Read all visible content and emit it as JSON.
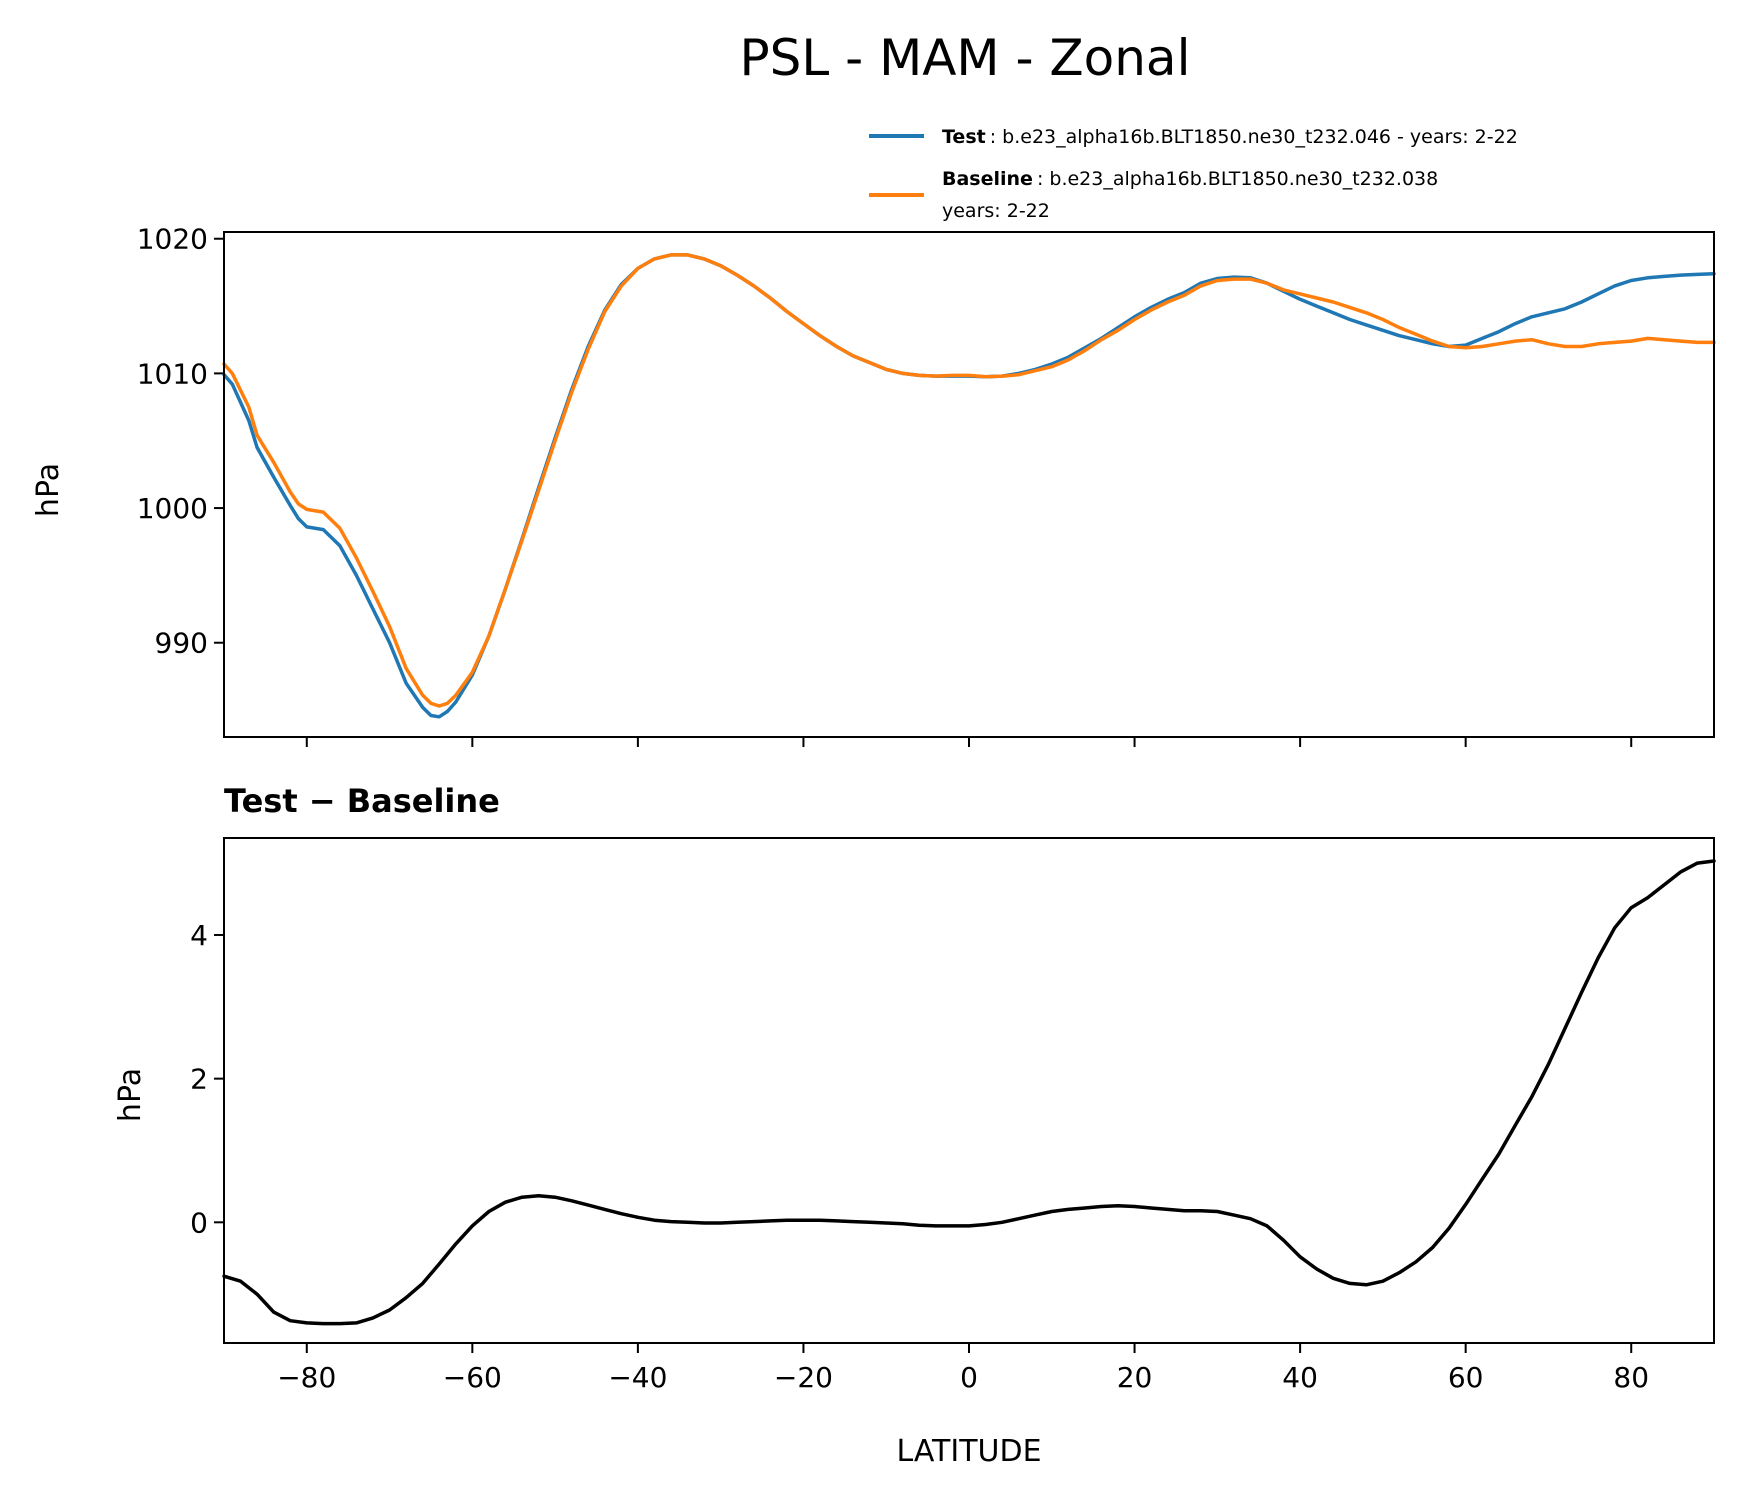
{
  "title": "PSL - MAM - Zonal",
  "legend": {
    "test_name": "Test",
    "test_text": ": b.e23_alpha16b.BLT1850.ne30_t232.046 - years: 2-22",
    "baseline_name": "Baseline",
    "baseline_text": ": b.e23_alpha16b.BLT1850.ne30_t232.038",
    "baseline_text2": "years: 2-22",
    "placement": "above top panel, right"
  },
  "chart_data": [
    {
      "type": "line",
      "title": "",
      "xlabel": "",
      "ylabel": "hPa",
      "xlim": [
        -90,
        90
      ],
      "ylim": [
        983,
        1020.5
      ],
      "yticks": [
        990,
        1000,
        1010,
        1020
      ],
      "ytick_labels": [
        "990",
        "1000",
        "1010",
        "1020"
      ],
      "xticks": [
        -80,
        -60,
        -40,
        -20,
        0,
        20,
        40,
        60,
        80
      ],
      "grid": false,
      "legend_position": "above plot, right",
      "series": [
        {
          "name": "Test",
          "color": "#1f77b4",
          "x": [
            -90,
            -89,
            -87,
            -86,
            -84,
            -82,
            -81,
            -80,
            -78,
            -76,
            -74,
            -72,
            -70,
            -68,
            -66,
            -65,
            -64,
            -63,
            -62,
            -60,
            -58,
            -56,
            -54,
            -52,
            -50,
            -48,
            -46,
            -44,
            -42,
            -40,
            -38,
            -36,
            -34,
            -32,
            -30,
            -28,
            -26,
            -24,
            -22,
            -20,
            -18,
            -16,
            -14,
            -12,
            -10,
            -8,
            -6,
            -4,
            -2,
            0,
            2,
            4,
            6,
            8,
            10,
            12,
            14,
            16,
            18,
            20,
            22,
            24,
            26,
            28,
            30,
            32,
            34,
            36,
            38,
            40,
            42,
            44,
            46,
            48,
            50,
            52,
            54,
            56,
            58,
            60,
            62,
            64,
            66,
            68,
            70,
            72,
            74,
            76,
            78,
            80,
            82,
            84,
            86,
            88,
            90
          ],
          "values": [
            1009.9,
            1009.2,
            1006.5,
            1004.5,
            1002.3,
            1000.2,
            999.2,
            998.6,
            998.4,
            997.2,
            995.0,
            992.5,
            990.0,
            987.0,
            985.2,
            984.6,
            984.5,
            984.9,
            985.6,
            987.6,
            990.5,
            994.0,
            997.7,
            1001.5,
            1005.2,
            1008.8,
            1012.0,
            1014.7,
            1016.6,
            1017.8,
            1018.5,
            1018.8,
            1018.8,
            1018.5,
            1018.0,
            1017.3,
            1016.5,
            1015.6,
            1014.6,
            1013.7,
            1012.8,
            1012.0,
            1011.3,
            1010.8,
            1010.3,
            1010.0,
            1009.85,
            1009.8,
            1009.8,
            1009.8,
            1009.75,
            1009.8,
            1010.0,
            1010.3,
            1010.7,
            1011.2,
            1011.9,
            1012.6,
            1013.4,
            1014.2,
            1014.9,
            1015.5,
            1016.0,
            1016.7,
            1017.05,
            1017.15,
            1017.1,
            1016.7,
            1016.1,
            1015.5,
            1015.0,
            1014.5,
            1014.0,
            1013.6,
            1013.2,
            1012.8,
            1012.5,
            1012.2,
            1012.0,
            1012.1,
            1012.6,
            1013.1,
            1013.7,
            1014.2,
            1014.5,
            1014.8,
            1015.3,
            1015.9,
            1016.5,
            1016.9,
            1017.1,
            1017.2,
            1017.3,
            1017.35,
            1017.4
          ]
        },
        {
          "name": "Baseline",
          "color": "#ff7f0e",
          "x": [
            -90,
            -89,
            -87,
            -86,
            -84,
            -82,
            -81,
            -80,
            -78,
            -76,
            -74,
            -72,
            -70,
            -68,
            -66,
            -65,
            -64,
            -63,
            -62,
            -60,
            -58,
            -56,
            -54,
            -52,
            -50,
            -48,
            -46,
            -44,
            -42,
            -40,
            -38,
            -36,
            -34,
            -32,
            -30,
            -28,
            -26,
            -24,
            -22,
            -20,
            -18,
            -16,
            -14,
            -12,
            -10,
            -8,
            -6,
            -4,
            -2,
            0,
            2,
            4,
            6,
            8,
            10,
            12,
            14,
            16,
            18,
            20,
            22,
            24,
            26,
            28,
            30,
            32,
            34,
            36,
            38,
            40,
            42,
            44,
            46,
            48,
            50,
            52,
            54,
            56,
            58,
            60,
            62,
            64,
            66,
            68,
            70,
            72,
            74,
            76,
            78,
            80,
            82,
            84,
            86,
            88,
            90
          ],
          "values": [
            1010.7,
            1010.0,
            1007.5,
            1005.4,
            1003.4,
            1001.2,
            1000.3,
            999.9,
            999.7,
            998.5,
            996.3,
            993.8,
            991.2,
            988.1,
            986.1,
            985.5,
            985.3,
            985.5,
            986.1,
            987.8,
            990.5,
            994.0,
            997.6,
            1001.3,
            1005.0,
            1008.6,
            1011.8,
            1014.6,
            1016.5,
            1017.8,
            1018.5,
            1018.8,
            1018.8,
            1018.5,
            1018.0,
            1017.3,
            1016.5,
            1015.6,
            1014.6,
            1013.7,
            1012.8,
            1012.0,
            1011.3,
            1010.8,
            1010.3,
            1010.0,
            1009.85,
            1009.8,
            1009.85,
            1009.85,
            1009.75,
            1009.8,
            1009.9,
            1010.2,
            1010.5,
            1011.0,
            1011.7,
            1012.5,
            1013.2,
            1014.0,
            1014.7,
            1015.3,
            1015.8,
            1016.5,
            1016.9,
            1017.0,
            1017.0,
            1016.7,
            1016.2,
            1015.9,
            1015.6,
            1015.3,
            1014.9,
            1014.5,
            1014.0,
            1013.4,
            1012.9,
            1012.4,
            1012.0,
            1011.9,
            1012.0,
            1012.2,
            1012.4,
            1012.5,
            1012.2,
            1012.0,
            1012.0,
            1012.2,
            1012.3,
            1012.4,
            1012.6,
            1012.5,
            1012.4,
            1012.3,
            1012.3
          ]
        }
      ]
    },
    {
      "type": "line",
      "title": "Test − Baseline",
      "xlabel": "LATITUDE",
      "ylabel": "hPa",
      "xlim": [
        -90,
        90
      ],
      "ylim": [
        -1.68,
        5.35
      ],
      "yticks": [
        0,
        2,
        4
      ],
      "ytick_labels": [
        "0",
        "2",
        "4"
      ],
      "xticks": [
        -80,
        -60,
        -40,
        -20,
        0,
        20,
        40,
        60,
        80
      ],
      "xtick_labels": [
        "−80",
        "−60",
        "−40",
        "−20",
        "0",
        "20",
        "40",
        "60",
        "80"
      ],
      "grid": false,
      "series": [
        {
          "name": "",
          "color": "#000000",
          "x": [
            -90,
            -88,
            -86,
            -84,
            -82,
            -80,
            -78,
            -76,
            -74,
            -72,
            -70,
            -68,
            -66,
            -64,
            -62,
            -60,
            -58,
            -56,
            -54,
            -52,
            -50,
            -48,
            -46,
            -44,
            -42,
            -40,
            -38,
            -36,
            -34,
            -32,
            -30,
            -28,
            -26,
            -24,
            -22,
            -20,
            -18,
            -16,
            -14,
            -12,
            -10,
            -8,
            -6,
            -4,
            -2,
            0,
            2,
            4,
            6,
            8,
            10,
            12,
            14,
            16,
            18,
            20,
            22,
            24,
            26,
            28,
            30,
            32,
            34,
            36,
            38,
            40,
            42,
            44,
            46,
            48,
            50,
            52,
            54,
            56,
            58,
            60,
            62,
            64,
            66,
            68,
            70,
            72,
            74,
            76,
            78,
            80,
            82,
            84,
            86,
            88,
            90
          ],
          "values": [
            -0.75,
            -0.82,
            -1.0,
            -1.25,
            -1.37,
            -1.4,
            -1.41,
            -1.41,
            -1.4,
            -1.33,
            -1.22,
            -1.05,
            -0.85,
            -0.58,
            -0.3,
            -0.05,
            0.15,
            0.28,
            0.35,
            0.37,
            0.35,
            0.3,
            0.24,
            0.18,
            0.12,
            0.07,
            0.03,
            0.01,
            0.0,
            -0.01,
            -0.01,
            0.0,
            0.01,
            0.02,
            0.03,
            0.03,
            0.03,
            0.02,
            0.01,
            0.0,
            -0.01,
            -0.02,
            -0.04,
            -0.05,
            -0.05,
            -0.05,
            -0.03,
            0.0,
            0.05,
            0.1,
            0.15,
            0.18,
            0.2,
            0.22,
            0.23,
            0.22,
            0.2,
            0.18,
            0.16,
            0.16,
            0.15,
            0.1,
            0.05,
            -0.05,
            -0.25,
            -0.48,
            -0.65,
            -0.78,
            -0.85,
            -0.87,
            -0.82,
            -0.7,
            -0.55,
            -0.35,
            -0.08,
            0.25,
            0.6,
            0.95,
            1.35,
            1.75,
            2.2,
            2.7,
            3.2,
            3.68,
            4.1,
            4.38,
            4.52,
            4.7,
            4.88,
            5.0,
            5.03
          ]
        }
      ]
    }
  ]
}
